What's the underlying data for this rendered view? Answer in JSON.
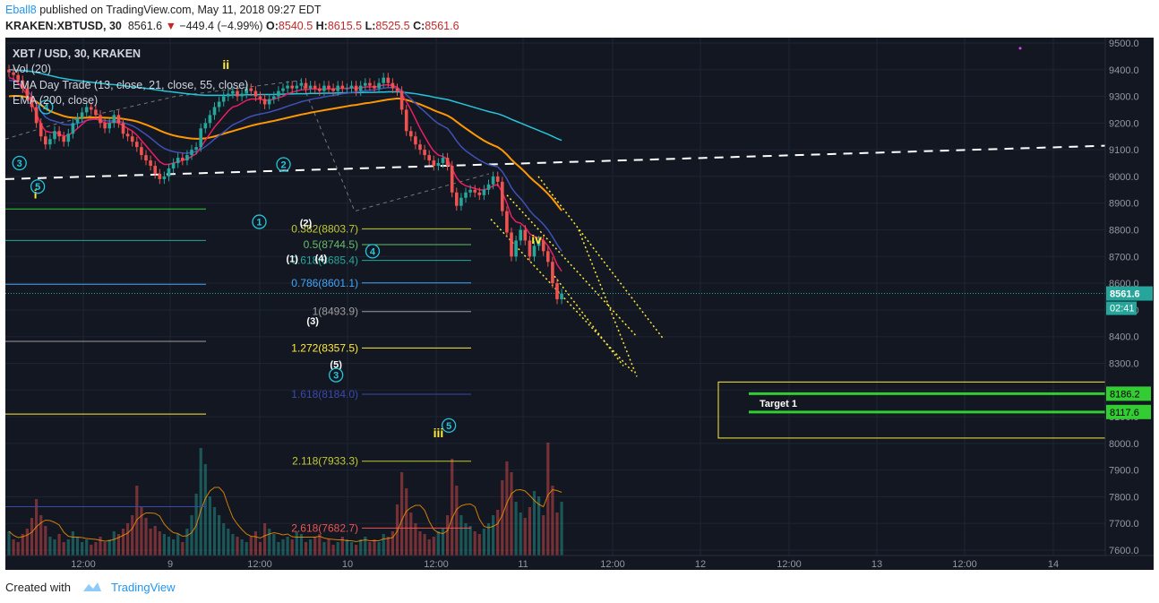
{
  "header": {
    "line1": {
      "user": "Eball8",
      "text": "published on TradingView.com, May 11, 2018 09:27 EDT"
    },
    "line2": {
      "symbol": "KRAKEN:XBTUSD, 30",
      "last": "8561.6",
      "arrow": "▼",
      "change": "−449.4 (−4.99%)",
      "o_label": "O:",
      "o": "8540.5",
      "h_label": "H:",
      "h": "8615.5",
      "l_label": "L:",
      "l": "8525.5",
      "c_label": "C:",
      "c": "8561.6"
    }
  },
  "footer": {
    "created_with": "Created with",
    "brand": "TradingView"
  },
  "colors": {
    "bg": "#131722",
    "grid": "#1e2433",
    "up": "#26a69a",
    "down": "#ef5350",
    "ema_fast1": "#e91e63",
    "ema_fast2": "#3f51b5",
    "ema_slow": "#ff9800",
    "ema200": "#26c6da",
    "wave": "#26c6da",
    "major_wave": "#ffeb3b",
    "target": "#33cc33"
  },
  "legend": {
    "title": "XBT / USD, 30, KRAKEN",
    "vol": "Vol (20)",
    "ema_day_trade": "EMA Day Trade (13, close, 21, close, 55, close)",
    "ema200": "EMA (200, close)"
  },
  "chart_data": {
    "type": "candlestick",
    "ylim": [
      7580,
      9520
    ],
    "y_ticks": [
      9500,
      9400,
      9300,
      9200,
      9100,
      9000,
      8900,
      8800,
      8700,
      8600,
      8500,
      8400,
      8300,
      8200,
      8100,
      8000,
      7900,
      7800,
      7700,
      7600
    ],
    "x_tick_labels": [
      "12:00",
      "9",
      "12:00",
      "10",
      "12:00",
      "11",
      "12:00",
      "12",
      "12:00",
      "13",
      "12:00",
      "14"
    ],
    "price": [
      9390,
      9380,
      9360,
      9330,
      9300,
      9260,
      9200,
      9150,
      9120,
      9140,
      9170,
      9150,
      9130,
      9160,
      9200,
      9220,
      9240,
      9260,
      9250,
      9230,
      9200,
      9180,
      9200,
      9230,
      9200,
      9160,
      9150,
      9130,
      9110,
      9080,
      9060,
      9040,
      9010,
      8990,
      9000,
      9030,
      9050,
      9070,
      9060,
      9080,
      9100,
      9110,
      9180,
      9200,
      9230,
      9260,
      9280,
      9300,
      9310,
      9320,
      9300,
      9310,
      9330,
      9320,
      9300,
      9290,
      9270,
      9290,
      9300,
      9320,
      9330,
      9340,
      9330,
      9340,
      9350,
      9330,
      9340,
      9330,
      9320,
      9340,
      9330,
      9320,
      9340,
      9330,
      9330,
      9340,
      9320,
      9340,
      9350,
      9340,
      9330,
      9350,
      9370,
      9350,
      9330,
      9320,
      9250,
      9170,
      9150,
      9120,
      9100,
      9080,
      9060,
      9040,
      9050,
      9070,
      9040,
      8940,
      8890,
      8920,
      8940,
      8950,
      8940,
      8930,
      8950,
      8970,
      9000,
      8980,
      8870,
      8790,
      8700,
      8760,
      8800,
      8760,
      8700,
      8740,
      8760,
      8720,
      8680,
      8600,
      8540,
      8561
    ],
    "volume": [
      0.18,
      0.12,
      0.1,
      0.16,
      0.2,
      0.28,
      0.42,
      0.3,
      0.22,
      0.14,
      0.12,
      0.16,
      0.1,
      0.12,
      0.18,
      0.14,
      0.1,
      0.12,
      0.08,
      0.1,
      0.14,
      0.1,
      0.12,
      0.18,
      0.16,
      0.2,
      0.24,
      0.3,
      0.52,
      0.36,
      0.28,
      0.2,
      0.22,
      0.18,
      0.16,
      0.14,
      0.12,
      0.16,
      0.1,
      0.2,
      0.3,
      0.46,
      0.8,
      0.68,
      0.44,
      0.36,
      0.3,
      0.24,
      0.2,
      0.16,
      0.14,
      0.12,
      0.1,
      0.14,
      0.18,
      0.1,
      0.24,
      0.2,
      0.16,
      0.1,
      0.12,
      0.14,
      0.12,
      0.18,
      0.16,
      0.1,
      0.12,
      0.14,
      0.16,
      0.1,
      0.12,
      0.08,
      0.1,
      0.14,
      0.12,
      0.1,
      0.08,
      0.12,
      0.14,
      0.1,
      0.12,
      0.1,
      0.16,
      0.14,
      0.18,
      0.38,
      0.62,
      0.5,
      0.32,
      0.24,
      0.18,
      0.16,
      0.12,
      0.14,
      0.18,
      0.2,
      0.3,
      0.72,
      0.52,
      0.3,
      0.24,
      0.22,
      0.18,
      0.16,
      0.2,
      0.24,
      0.3,
      0.34,
      0.56,
      0.7,
      0.62,
      0.4,
      0.32,
      0.28,
      0.36,
      0.48,
      0.44,
      0.3,
      0.84,
      0.52,
      0.32,
      0.4
    ],
    "ema13": [
      9370,
      9365,
      9350,
      9330,
      9305,
      9275,
      9235,
      9195,
      9170,
      9165,
      9165,
      9160,
      9150,
      9155,
      9165,
      9180,
      9195,
      9210,
      9215,
      9215,
      9210,
      9200,
      9200,
      9205,
      9200,
      9190,
      9180,
      9170,
      9155,
      9135,
      9115,
      9095,
      9075,
      9055,
      9045,
      9045,
      9050,
      9055,
      9060,
      9065,
      9075,
      9085,
      9110,
      9135,
      9160,
      9185,
      9205,
      9225,
      9245,
      9260,
      9265,
      9275,
      9285,
      9290,
      9290,
      9290,
      9285,
      9285,
      9290,
      9295,
      9300,
      9310,
      9315,
      9320,
      9325,
      9325,
      9328,
      9328,
      9326,
      9328,
      9328,
      9327,
      9330,
      9330,
      9330,
      9332,
      9330,
      9332,
      9335,
      9336,
      9335,
      9338,
      9343,
      9343,
      9340,
      9335,
      9310,
      9280,
      9250,
      9215,
      9180,
      9150,
      9120,
      9095,
      9080,
      9075,
      9065,
      9030,
      8995,
      8975,
      8965,
      8960,
      8955,
      8950,
      8950,
      8955,
      8965,
      8970,
      8940,
      8900,
      8850,
      8830,
      8825,
      8810,
      8785,
      8775,
      8770,
      8760,
      8740,
      8710,
      8670,
      8645
    ],
    "ema21": [
      9360,
      9358,
      9350,
      9338,
      9322,
      9302,
      9275,
      9245,
      9222,
      9212,
      9207,
      9202,
      9195,
      9193,
      9194,
      9198,
      9204,
      9210,
      9213,
      9215,
      9213,
      9209,
      9208,
      9208,
      9207,
      9202,
      9196,
      9190,
      9181,
      9169,
      9157,
      9144,
      9130,
      9116,
      9105,
      9098,
      9093,
      9090,
      9088,
      9087,
      9090,
      9093,
      9101,
      9112,
      9125,
      9140,
      9153,
      9166,
      9180,
      9193,
      9201,
      9209,
      9218,
      9225,
      9230,
      9234,
      9237,
      9241,
      9246,
      9251,
      9257,
      9263,
      9269,
      9274,
      9280,
      9284,
      9288,
      9292,
      9294,
      9298,
      9301,
      9303,
      9307,
      9310,
      9312,
      9315,
      9316,
      9318,
      9321,
      9323,
      9324,
      9327,
      9331,
      9333,
      9333,
      9332,
      9322,
      9306,
      9290,
      9274,
      9258,
      9243,
      9227,
      9211,
      9198,
      9189,
      9180,
      9158,
      9133,
      9112,
      9096,
      9084,
      9072,
      9061,
      9052,
      9044,
      9040,
      9036,
      9018,
      8991,
      8958,
      8935,
      8917,
      8896,
      8872,
      8853,
      8838,
      8821,
      8800,
      8774,
      8745,
      8720
    ],
    "ema55": [
      9300,
      9302,
      9302,
      9300,
      9296,
      9290,
      9280,
      9268,
      9255,
      9245,
      9238,
      9232,
      9226,
      9222,
      9220,
      9219,
      9219,
      9220,
      9221,
      9221,
      9221,
      9220,
      9219,
      9219,
      9218,
      9216,
      9213,
      9210,
      9206,
      9200,
      9194,
      9187,
      9180,
      9172,
      9165,
      9159,
      9154,
      9150,
      9147,
      9144,
      9142,
      9141,
      9141,
      9143,
      9146,
      9150,
      9155,
      9160,
      9165,
      9170,
      9175,
      9180,
      9185,
      9190,
      9194,
      9198,
      9201,
      9205,
      9208,
      9212,
      9216,
      9220,
      9224,
      9228,
      9232,
      9235,
      9239,
      9242,
      9245,
      9248,
      9251,
      9254,
      9257,
      9260,
      9263,
      9266,
      9268,
      9271,
      9274,
      9276,
      9279,
      9282,
      9285,
      9288,
      9290,
      9292,
      9291,
      9287,
      9282,
      9276,
      9270,
      9263,
      9256,
      9248,
      9241,
      9235,
      9228,
      9218,
      9205,
      9192,
      9180,
      9168,
      9156,
      9145,
      9134,
      9125,
      9117,
      9110,
      9098,
      9082,
      9063,
      9047,
      9032,
      9016,
      8998,
      8982,
      8968,
      8952,
      8935,
      8916,
      8894,
      8872
    ],
    "ema200": [
      9400,
      9399,
      9398,
      9397,
      9395,
      9393,
      9390,
      9386,
      9382,
      9378,
      9374,
      9370,
      9367,
      9364,
      9361,
      9359,
      9357,
      9355,
      9353,
      9351,
      9349,
      9347,
      9345,
      9344,
      9342,
      9340,
      9338,
      9336,
      9334,
      9332,
      9330,
      9328,
      9325,
      9323,
      9320,
      9318,
      9316,
      9314,
      9312,
      9310,
      9308,
      9306,
      9305,
      9304,
      9304,
      9304,
      9304,
      9304,
      9304,
      9305,
      9305,
      9305,
      9306,
      9306,
      9306,
      9307,
      9307,
      9307,
      9307,
      9308,
      9308,
      9309,
      9309,
      9310,
      9310,
      9310,
      9311,
      9311,
      9311,
      9312,
      9312,
      9312,
      9313,
      9313,
      9313,
      9314,
      9314,
      9314,
      9315,
      9315,
      9315,
      9316,
      9316,
      9317,
      9317,
      9317,
      9316,
      9314,
      9312,
      9310,
      9307,
      9304,
      9301,
      9297,
      9294,
      9291,
      9288,
      9283,
      9278,
      9273,
      9268,
      9263,
      9258,
      9253,
      9248,
      9243,
      9239,
      9235,
      9229,
      9222,
      9214,
      9207,
      9200,
      9193,
      9186,
      9179,
      9172,
      9165,
      9158,
      9150,
      9142,
      9135
    ],
    "fib_levels": [
      {
        "label": "0.382(8803.7)",
        "value": 8803.7,
        "color": "#c0ca33"
      },
      {
        "label": "0.5(8744.5)",
        "value": 8744.5,
        "color": "#66bb6a"
      },
      {
        "label": "0.618(8685.4)",
        "value": 8685.4,
        "color": "#26a69a"
      },
      {
        "label": "0.786(8601.1)",
        "value": 8601.1,
        "color": "#42a5f5"
      },
      {
        "label": "1(8493.9)",
        "value": 8493.9,
        "color": "#9e9e9e"
      },
      {
        "label": "1.272(8357.5)",
        "value": 8357.5,
        "color": "#ffeb3b"
      },
      {
        "label": "1.618(8184.0)",
        "value": 8184.0,
        "color": "#3949ab"
      },
      {
        "label": "2.118(7933.3)",
        "value": 7933.3,
        "color": "#c0ca33"
      },
      {
        "label": "2.618(7682.7)",
        "value": 7682.7,
        "color": "#ef5350"
      }
    ],
    "left_lines": [
      {
        "value": 8878,
        "color": "#33cc33"
      },
      {
        "value": 8760,
        "color": "#26a69a"
      },
      {
        "value": 8596,
        "color": "#42a5f5"
      },
      {
        "value": 8382,
        "color": "#9e9e9e"
      },
      {
        "value": 8110,
        "color": "#ffeb3b"
      },
      {
        "value": 7763,
        "color": "#3949ab"
      }
    ],
    "targets": [
      {
        "value": 8186.2,
        "label": "8186.2"
      },
      {
        "value": 8117.6,
        "label": "8117.6"
      }
    ],
    "target_label": "Target 1",
    "last_price_label": "8561.6",
    "countdown": "02:41",
    "wave_labels": [
      {
        "text": "3",
        "circle": true,
        "color": "#26c6da",
        "x": 2.3,
        "y": 9050
      },
      {
        "text": "4",
        "circle": true,
        "color": "#26c6da",
        "x": 8.1,
        "y": 9260
      },
      {
        "text": "i",
        "circle": false,
        "color": "#ffeb3b",
        "x": 5.8,
        "y": 8935
      },
      {
        "text": "5",
        "circle": true,
        "color": "#26c6da",
        "x": 6.3,
        "y": 8962
      },
      {
        "text": "ii",
        "circle": false,
        "color": "#ffeb3b",
        "x": 47.5,
        "y": 9420
      },
      {
        "text": "1",
        "circle": true,
        "color": "#26c6da",
        "x": 54.8,
        "y": 8830
      },
      {
        "text": "2",
        "circle": true,
        "color": "#26c6da",
        "x": 60.1,
        "y": 9045
      },
      {
        "text": "(2)",
        "circle": false,
        "color": "#ffffff",
        "x": 65.0,
        "y": 8830
      },
      {
        "text": "(1)",
        "circle": false,
        "color": "#ffffff",
        "x": 62.0,
        "y": 8696
      },
      {
        "text": "(4)",
        "circle": false,
        "color": "#ffffff",
        "x": 68.3,
        "y": 8698
      },
      {
        "text": "(3)",
        "circle": false,
        "color": "#ffffff",
        "x": 66.5,
        "y": 8462
      },
      {
        "text": "4",
        "circle": true,
        "color": "#26c6da",
        "x": 79.6,
        "y": 8720
      },
      {
        "text": "iv",
        "circle": false,
        "color": "#ffeb3b",
        "x": 115.5,
        "y": 8765
      },
      {
        "text": "(5)",
        "circle": false,
        "color": "#ffffff",
        "x": 71.6,
        "y": 8300
      },
      {
        "text": "3",
        "circle": true,
        "color": "#26c6da",
        "x": 71.6,
        "y": 8256
      },
      {
        "text": "5",
        "circle": true,
        "color": "#26c6da",
        "x": 96.3,
        "y": 8067
      },
      {
        "text": "iii",
        "circle": false,
        "color": "#ffeb3b",
        "x": 94.0,
        "y": 8040
      }
    ]
  }
}
